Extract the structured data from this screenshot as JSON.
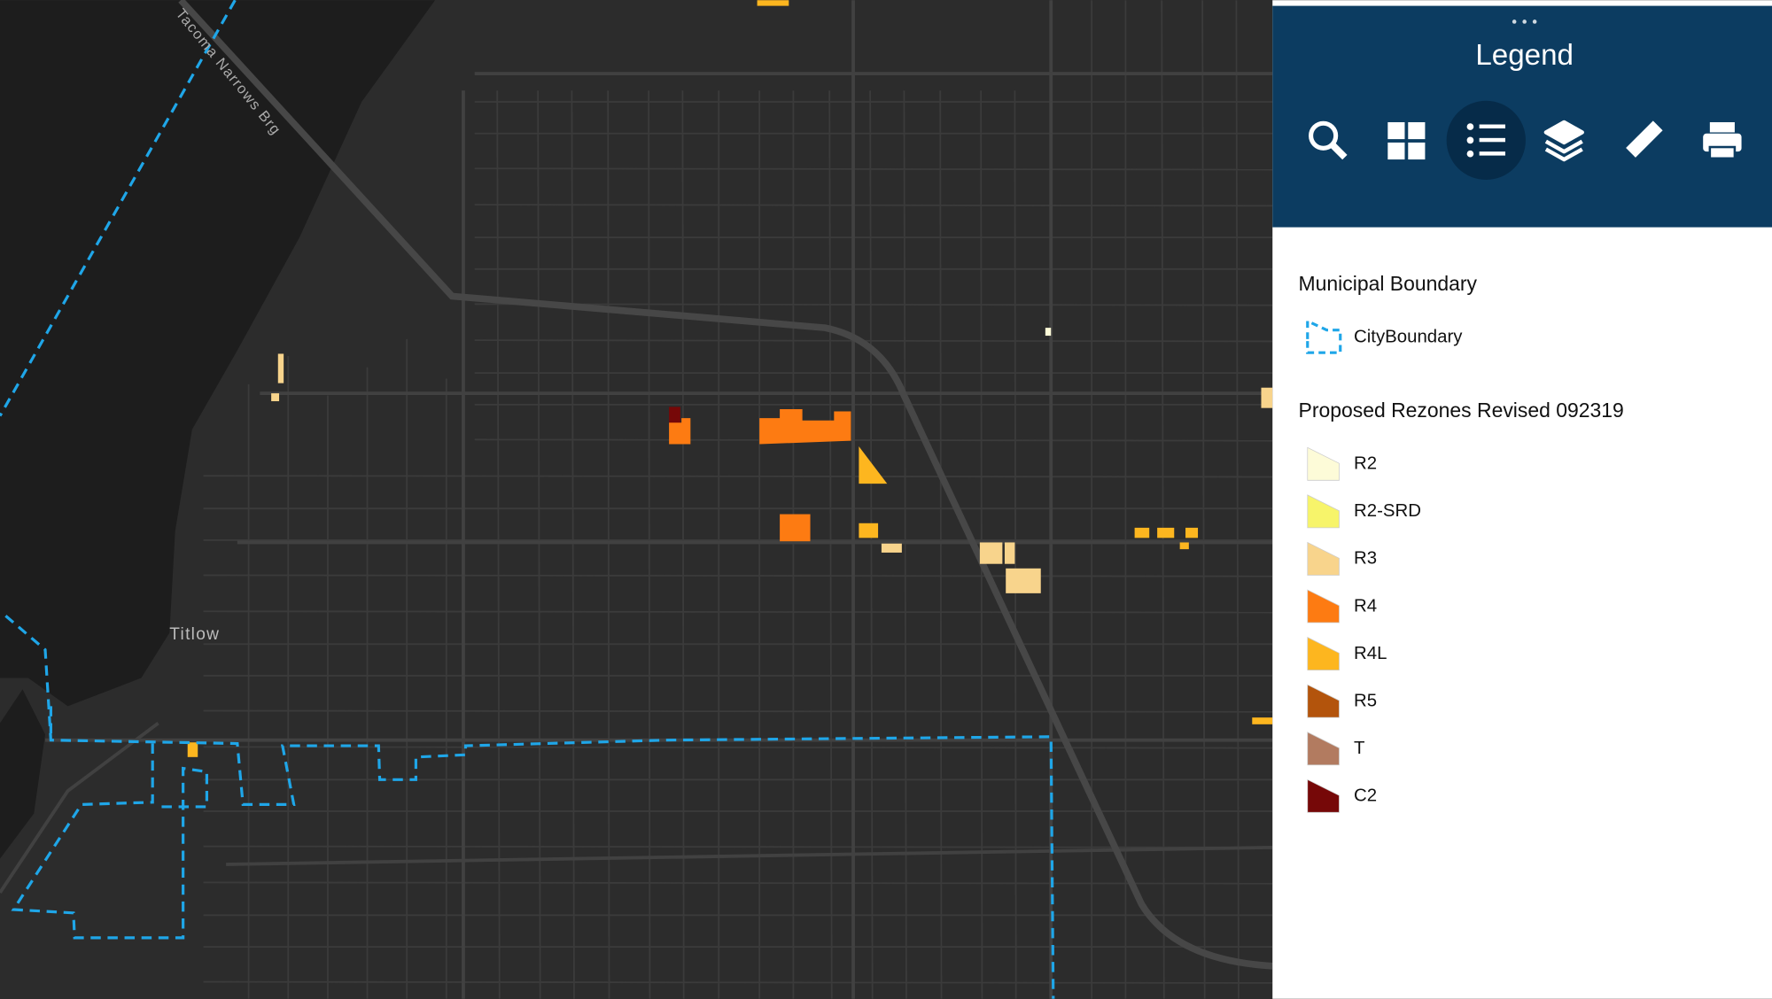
{
  "map": {
    "labels": [
      "Tacoma Narrows Brg",
      "Titlow"
    ]
  },
  "legend_panel": {
    "title": "Legend",
    "tools": [
      "search",
      "basemap-gallery",
      "legend",
      "layers",
      "measure",
      "print"
    ],
    "sections": [
      {
        "title": "Municipal Boundary",
        "items": [
          {
            "label": "CityBoundary",
            "color": "#1fa6e8",
            "style": "dashed"
          }
        ]
      },
      {
        "title": "Proposed Rezones Revised 092319",
        "items": [
          {
            "label": "R2",
            "color": "#fdfbd8"
          },
          {
            "label": "R2-SRD",
            "color": "#f7f46a"
          },
          {
            "label": "R3",
            "color": "#f8d48c"
          },
          {
            "label": "R4",
            "color": "#fd7b12"
          },
          {
            "label": "R4L",
            "color": "#fdb61f"
          },
          {
            "label": "R5",
            "color": "#b3540c"
          },
          {
            "label": "T",
            "color": "#b27b60"
          },
          {
            "label": "C2",
            "color": "#760808"
          }
        ]
      }
    ]
  }
}
